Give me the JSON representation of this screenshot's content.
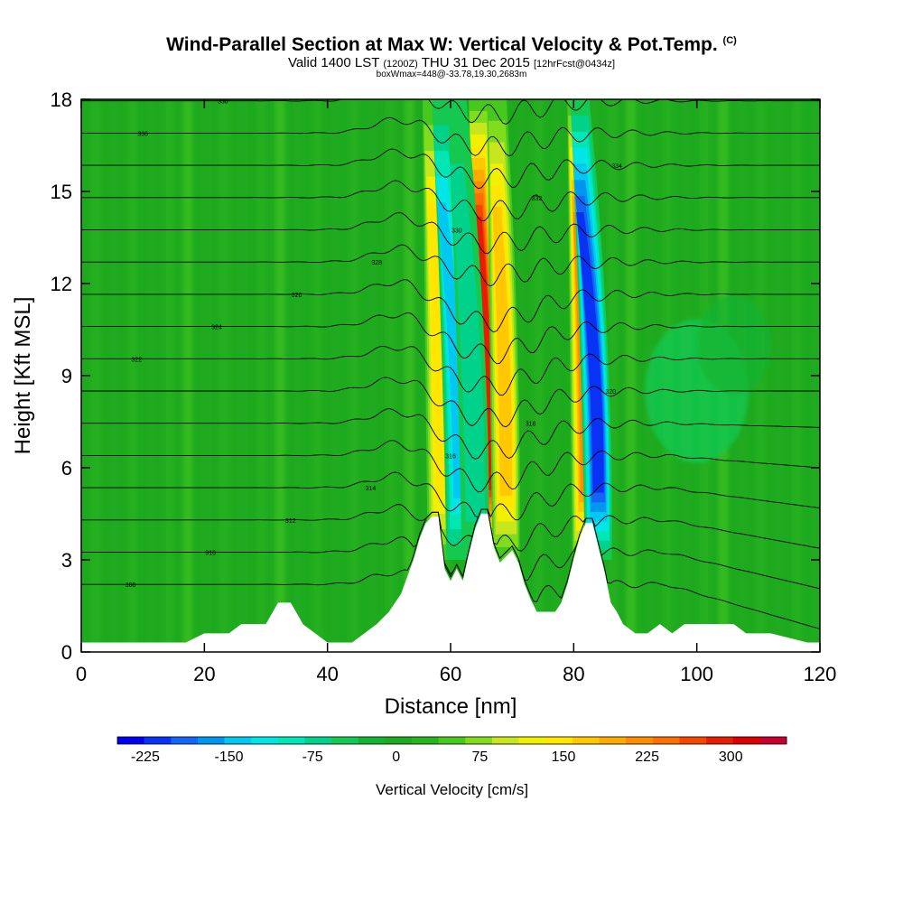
{
  "header": {
    "title": "Wind-Parallel Section at Max W: Vertical Velocity & Pot.Temp.",
    "copyright": "(C)",
    "valid_prefix": "Valid 1400 LST",
    "valid_utc": "(1200Z)",
    "valid_date": "THU 31 Dec 2015",
    "forecast": "[12hrFcst@0434z]",
    "box_info": "boxWmax=448@-33.78,19.30,2683m"
  },
  "chart_data": {
    "type": "heatmap",
    "title": "Wind-Parallel Section at Max W: Vertical Velocity & Pot.Temp.",
    "xlabel": "Distance [nm]",
    "ylabel": "Height [Kft MSL]",
    "xlim": [
      0,
      120
    ],
    "ylim": [
      0,
      18
    ],
    "x_ticks": [
      0,
      20,
      40,
      60,
      80,
      100,
      120
    ],
    "y_ticks": [
      0,
      3,
      6,
      9,
      12,
      15,
      18
    ],
    "colorbar": {
      "title": "Vertical Velocity [cm/s]",
      "tick_labels": [
        "-225",
        "-150",
        "-75",
        "0",
        "75",
        "150",
        "225",
        "300"
      ],
      "tick_values": [
        -225,
        -150,
        -75,
        0,
        75,
        150,
        225,
        300
      ],
      "min": -250,
      "max": 350,
      "step": 25,
      "colors": [
        "#0000f0",
        "#0a32f5",
        "#1464f5",
        "#0096f0",
        "#00c8f0",
        "#00e6e6",
        "#00e6b4",
        "#00d28c",
        "#14c850",
        "#14b432",
        "#1eaa1e",
        "#28b41e",
        "#46c81e",
        "#82dc1e",
        "#c8e61e",
        "#f0f000",
        "#ffe600",
        "#ffc800",
        "#ffaa00",
        "#ff8c00",
        "#ff6e00",
        "#f54600",
        "#e61e00",
        "#dc0000",
        "#c8002d"
      ]
    },
    "updraft_columns": [
      {
        "x": 58.5,
        "peak_w": 150
      },
      {
        "x": 66.0,
        "peak_w": 300
      },
      {
        "x": 69.0,
        "peak_w": 175
      },
      {
        "x": 82.0,
        "peak_w": 225
      }
    ],
    "downdraft_columns": [
      {
        "x": 61.5,
        "peak_w": -150
      },
      {
        "x": 64.0,
        "peak_w": -75
      },
      {
        "x": 84.0,
        "peak_w": -225
      }
    ],
    "terrain_profile": {
      "x": [
        0,
        17,
        20,
        24,
        26,
        30,
        32,
        34,
        36,
        38,
        40,
        42,
        44,
        46,
        48,
        50,
        52,
        54,
        55,
        56,
        57,
        58,
        59,
        60,
        61,
        62,
        63,
        64,
        65,
        66,
        67,
        68,
        69,
        70,
        71,
        72,
        73,
        74,
        75,
        76,
        77,
        78,
        79,
        80,
        81,
        82,
        83,
        84,
        85,
        86,
        87,
        88,
        90,
        92,
        94,
        96,
        98,
        100,
        106,
        108,
        112,
        118,
        120
      ],
      "height": [
        0.3,
        0.3,
        0.6,
        0.6,
        0.9,
        0.9,
        1.6,
        1.6,
        0.9,
        0.6,
        0.3,
        0.3,
        0.3,
        0.6,
        0.9,
        1.3,
        1.9,
        3.0,
        3.7,
        4.2,
        4.4,
        4.4,
        2.7,
        2.3,
        2.7,
        2.3,
        3.2,
        4.0,
        4.5,
        4.5,
        3.4,
        2.9,
        3.1,
        3.3,
        2.9,
        2.2,
        1.7,
        1.3,
        1.3,
        1.3,
        1.3,
        1.6,
        2.2,
        3.0,
        3.7,
        4.2,
        4.2,
        3.4,
        2.6,
        1.6,
        1.3,
        0.9,
        0.6,
        0.6,
        0.9,
        0.6,
        0.9,
        0.9,
        0.9,
        0.6,
        0.6,
        0.3,
        0.3
      ]
    },
    "isentrope_labels": [
      "308",
      "310",
      "312",
      "314",
      "316",
      "318",
      "320",
      "322",
      "324",
      "326",
      "328",
      "330",
      "332",
      "334",
      "336",
      "338"
    ]
  }
}
